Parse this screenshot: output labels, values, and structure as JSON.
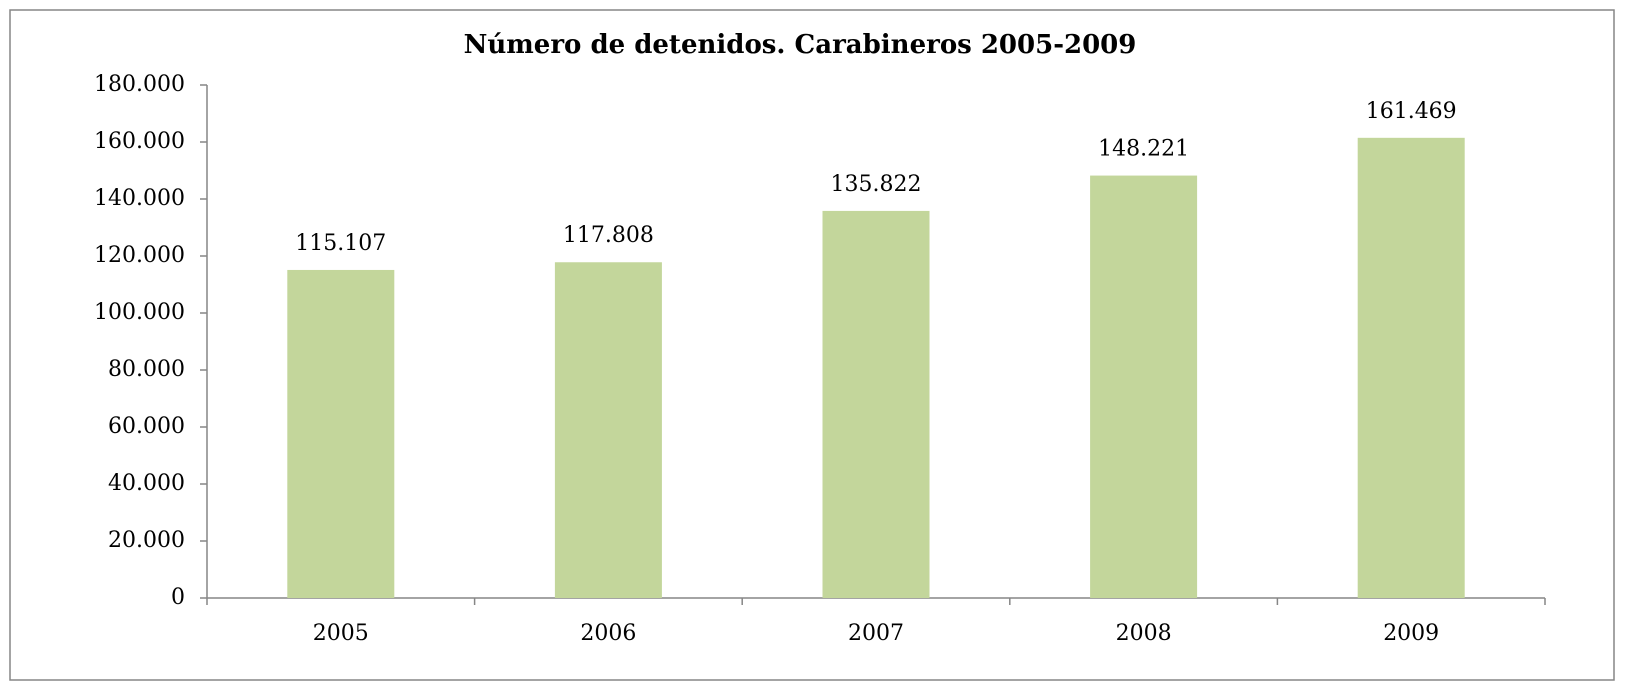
{
  "chart_data": {
    "type": "bar",
    "title": "Número de detenidos. Carabineros 2005-2009",
    "categories": [
      "2005",
      "2006",
      "2007",
      "2008",
      "2009"
    ],
    "values": [
      115107,
      117808,
      135822,
      148221,
      161469
    ],
    "value_labels": [
      "115.107",
      "117.808",
      "135.822",
      "148.221",
      "161.469"
    ],
    "color": "#c3d69b",
    "ylim": [
      0,
      180000
    ],
    "yticks": [
      0,
      {
        "value": 20000,
        "label": "20.000"
      },
      {
        "value": 40000,
        "label": "40.000"
      },
      {
        "value": 60000,
        "label": "60.000"
      },
      {
        "value": 80000,
        "label": "80.000"
      },
      {
        "value": 100000,
        "label": "100.000"
      },
      {
        "value": 120000,
        "label": "120.000"
      },
      {
        "value": 140000,
        "label": "140.000"
      },
      {
        "value": 160000,
        "label": "160.000"
      },
      {
        "value": 180000,
        "label": "180.000"
      }
    ],
    "grid": false
  }
}
